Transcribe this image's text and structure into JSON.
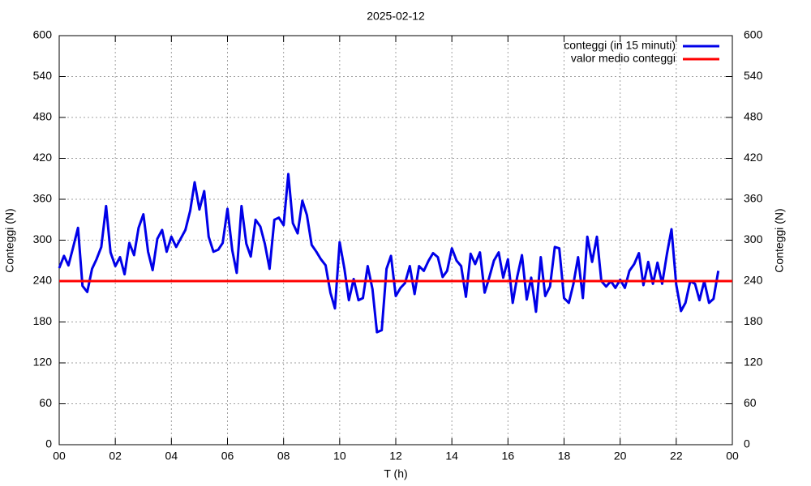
{
  "chart_data": {
    "type": "line",
    "title": "2025-02-12",
    "xlabel": "T (h)",
    "ylabel": "Conteggi (N)",
    "y2label": "Conteggi (N)",
    "xlim": [
      0,
      24
    ],
    "xticks": [
      {
        "value": 0,
        "label": "00"
      },
      {
        "value": 2,
        "label": "02"
      },
      {
        "value": 4,
        "label": "04"
      },
      {
        "value": 6,
        "label": "06"
      },
      {
        "value": 8,
        "label": "08"
      },
      10,
      12,
      14,
      16,
      18,
      20,
      22,
      {
        "value": 24,
        "label": "00"
      }
    ],
    "ylim": [
      0,
      600
    ],
    "yticks": [
      0,
      60,
      120,
      180,
      240,
      300,
      360,
      420,
      480,
      540,
      600
    ],
    "y2lim": [
      0,
      600
    ],
    "y2ticks": [
      0,
      60,
      120,
      180,
      240,
      300,
      360,
      420,
      480,
      540,
      600
    ],
    "grid": true,
    "legend": "top right",
    "x": [
      0,
      0.17,
      0.33,
      0.5,
      0.67,
      0.83,
      1,
      1.17,
      1.33,
      1.5,
      1.67,
      1.83,
      2,
      2.17,
      2.33,
      2.5,
      2.67,
      2.83,
      3,
      3.17,
      3.33,
      3.5,
      3.67,
      3.83,
      4,
      4.17,
      4.33,
      4.5,
      4.67,
      4.83,
      5,
      5.17,
      5.33,
      5.5,
      5.67,
      5.83,
      6,
      6.17,
      6.33,
      6.5,
      6.67,
      6.83,
      7,
      7.17,
      7.33,
      7.5,
      7.67,
      7.83,
      8,
      8.17,
      8.33,
      8.5,
      8.67,
      8.83,
      9,
      9.17,
      9.33,
      9.5,
      9.67,
      9.83,
      10,
      10.17,
      10.33,
      10.5,
      10.67,
      10.83,
      11,
      11.17,
      11.33,
      11.5,
      11.67,
      11.83,
      12,
      12.17,
      12.33,
      12.5,
      12.67,
      12.83,
      13,
      13.17,
      13.33,
      13.5,
      13.67,
      13.83,
      14,
      14.17,
      14.33,
      14.5,
      14.67,
      14.83,
      15,
      15.17,
      15.33,
      15.5,
      15.67,
      15.83,
      16,
      16.17,
      16.33,
      16.5,
      16.67,
      16.83,
      17,
      17.17,
      17.33,
      17.5,
      17.67,
      17.83,
      18,
      18.17,
      18.33,
      18.5,
      18.67,
      18.83,
      19,
      19.17,
      19.33,
      19.5,
      19.67,
      19.83,
      20,
      20.17,
      20.33,
      20.5,
      20.67,
      20.83,
      21,
      21.17,
      21.33,
      21.5,
      21.67,
      21.83,
      22,
      22.17,
      22.33,
      22.5,
      22.67,
      22.83,
      23,
      23.17,
      23.33,
      23.5
    ],
    "series": [
      {
        "name": "conteggi (in 15 minuti)",
        "color": "#0000e8",
        "values": [
          259,
          277,
          263,
          290,
          318,
          233,
          224,
          258,
          272,
          290,
          350,
          282,
          262,
          275,
          250,
          296,
          278,
          318,
          338,
          283,
          256,
          302,
          315,
          283,
          305,
          290,
          302,
          315,
          343,
          385,
          345,
          372,
          305,
          283,
          286,
          296,
          346,
          285,
          252,
          350,
          295,
          276,
          330,
          320,
          295,
          258,
          330,
          333,
          322,
          397,
          325,
          310,
          358,
          337,
          293,
          283,
          272,
          263,
          223,
          200,
          297,
          258,
          212,
          243,
          212,
          215,
          262,
          228,
          165,
          168,
          258,
          277,
          218,
          230,
          237,
          262,
          221,
          262,
          255,
          270,
          281,
          275,
          246,
          255,
          288,
          270,
          262,
          217,
          280,
          265,
          282,
          223,
          245,
          270,
          282,
          245,
          272,
          208,
          246,
          278,
          213,
          245,
          195,
          275,
          218,
          232,
          290,
          288,
          215,
          208,
          235,
          275,
          215,
          305,
          268,
          305,
          240,
          232,
          240,
          230,
          242,
          230,
          255,
          265,
          281,
          234,
          268,
          236,
          267,
          236,
          280,
          316,
          235,
          196,
          208,
          240,
          236,
          212,
          240,
          208,
          214,
          255
        ]
      },
      {
        "name": "valor medio conteggi",
        "color": "#ff0000",
        "x": [
          0,
          24
        ],
        "values": [
          240,
          240
        ]
      }
    ]
  }
}
